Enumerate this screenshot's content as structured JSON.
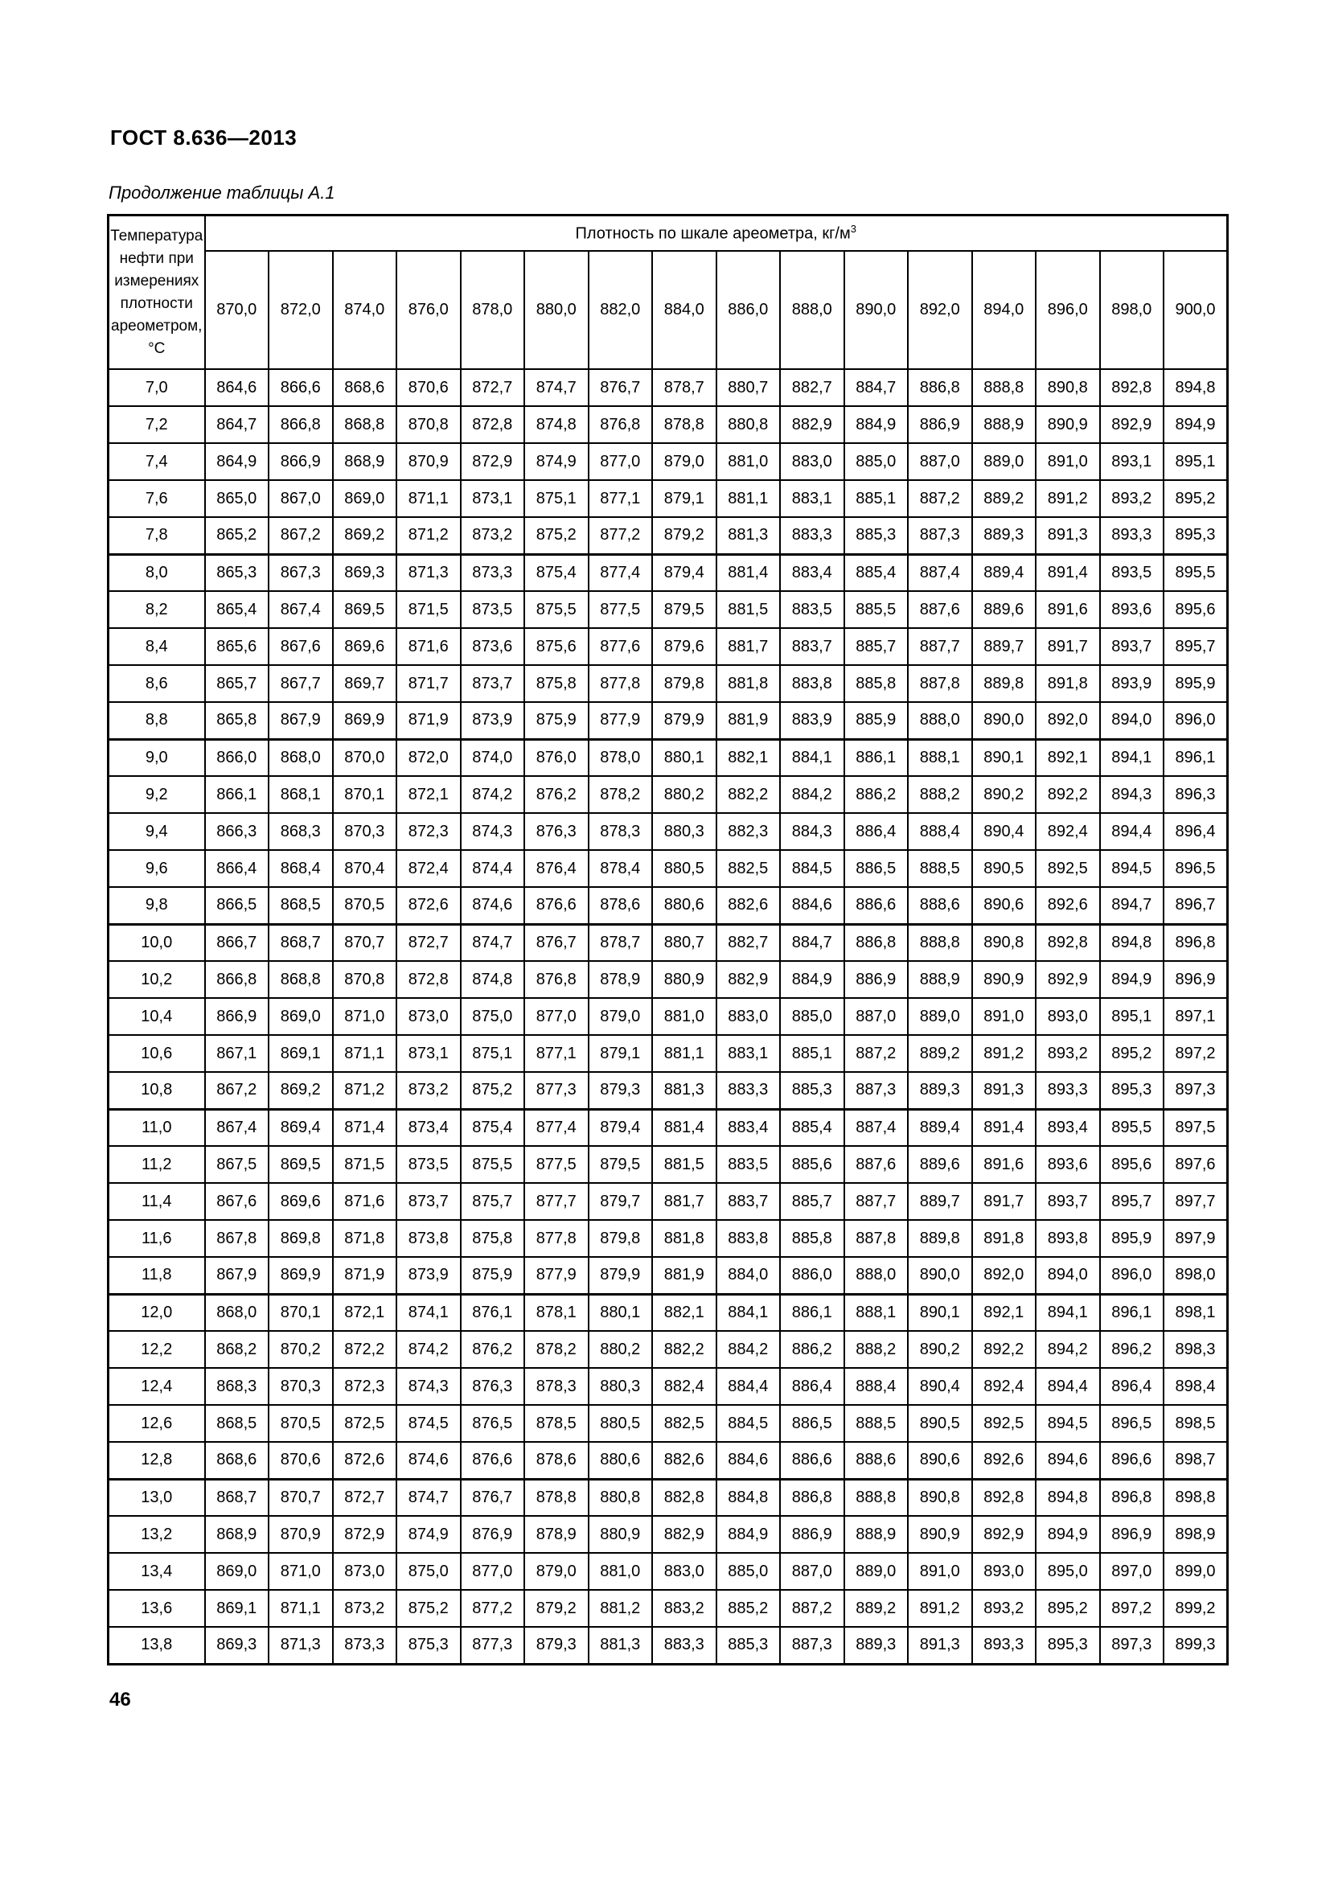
{
  "page": {
    "standard_number": "ГОСТ 8.636—2013",
    "table_caption": "Продолжение таблицы А.1",
    "page_number": "46"
  },
  "table": {
    "corner_header_lines": [
      "Температура",
      "нефти при",
      "измерениях",
      "плотности",
      "ареометром,",
      "°С"
    ],
    "span_header": "Плотность по шкале ареометра, кг/м",
    "span_header_superscript": "3",
    "column_headers": [
      "870,0",
      "872,0",
      "874,0",
      "876,0",
      "878,0",
      "880,0",
      "882,0",
      "884,0",
      "886,0",
      "888,0",
      "890,0",
      "892,0",
      "894,0",
      "896,0",
      "898,0",
      "900,0"
    ],
    "rows": [
      {
        "temp": "7,0",
        "values": [
          "864,6",
          "866,6",
          "868,6",
          "870,6",
          "872,7",
          "874,7",
          "876,7",
          "878,7",
          "880,7",
          "882,7",
          "884,7",
          "886,8",
          "888,8",
          "890,8",
          "892,8",
          "894,8"
        ]
      },
      {
        "temp": "7,2",
        "values": [
          "864,7",
          "866,8",
          "868,8",
          "870,8",
          "872,8",
          "874,8",
          "876,8",
          "878,8",
          "880,8",
          "882,9",
          "884,9",
          "886,9",
          "888,9",
          "890,9",
          "892,9",
          "894,9"
        ]
      },
      {
        "temp": "7,4",
        "values": [
          "864,9",
          "866,9",
          "868,9",
          "870,9",
          "872,9",
          "874,9",
          "877,0",
          "879,0",
          "881,0",
          "883,0",
          "885,0",
          "887,0",
          "889,0",
          "891,0",
          "893,1",
          "895,1"
        ]
      },
      {
        "temp": "7,6",
        "values": [
          "865,0",
          "867,0",
          "869,0",
          "871,1",
          "873,1",
          "875,1",
          "877,1",
          "879,1",
          "881,1",
          "883,1",
          "885,1",
          "887,2",
          "889,2",
          "891,2",
          "893,2",
          "895,2"
        ]
      },
      {
        "temp": "7,8",
        "values": [
          "865,2",
          "867,2",
          "869,2",
          "871,2",
          "873,2",
          "875,2",
          "877,2",
          "879,2",
          "881,3",
          "883,3",
          "885,3",
          "887,3",
          "889,3",
          "891,3",
          "893,3",
          "895,3"
        ]
      },
      {
        "temp": "8,0",
        "values": [
          "865,3",
          "867,3",
          "869,3",
          "871,3",
          "873,3",
          "875,4",
          "877,4",
          "879,4",
          "881,4",
          "883,4",
          "885,4",
          "887,4",
          "889,4",
          "891,4",
          "893,5",
          "895,5"
        ]
      },
      {
        "temp": "8,2",
        "values": [
          "865,4",
          "867,4",
          "869,5",
          "871,5",
          "873,5",
          "875,5",
          "877,5",
          "879,5",
          "881,5",
          "883,5",
          "885,5",
          "887,6",
          "889,6",
          "891,6",
          "893,6",
          "895,6"
        ]
      },
      {
        "temp": "8,4",
        "values": [
          "865,6",
          "867,6",
          "869,6",
          "871,6",
          "873,6",
          "875,6",
          "877,6",
          "879,6",
          "881,7",
          "883,7",
          "885,7",
          "887,7",
          "889,7",
          "891,7",
          "893,7",
          "895,7"
        ]
      },
      {
        "temp": "8,6",
        "values": [
          "865,7",
          "867,7",
          "869,7",
          "871,7",
          "873,7",
          "875,8",
          "877,8",
          "879,8",
          "881,8",
          "883,8",
          "885,8",
          "887,8",
          "889,8",
          "891,8",
          "893,9",
          "895,9"
        ]
      },
      {
        "temp": "8,8",
        "values": [
          "865,8",
          "867,9",
          "869,9",
          "871,9",
          "873,9",
          "875,9",
          "877,9",
          "879,9",
          "881,9",
          "883,9",
          "885,9",
          "888,0",
          "890,0",
          "892,0",
          "894,0",
          "896,0"
        ]
      },
      {
        "temp": "9,0",
        "values": [
          "866,0",
          "868,0",
          "870,0",
          "872,0",
          "874,0",
          "876,0",
          "878,0",
          "880,1",
          "882,1",
          "884,1",
          "886,1",
          "888,1",
          "890,1",
          "892,1",
          "894,1",
          "896,1"
        ]
      },
      {
        "temp": "9,2",
        "values": [
          "866,1",
          "868,1",
          "870,1",
          "872,1",
          "874,2",
          "876,2",
          "878,2",
          "880,2",
          "882,2",
          "884,2",
          "886,2",
          "888,2",
          "890,2",
          "892,2",
          "894,3",
          "896,3"
        ]
      },
      {
        "temp": "9,4",
        "values": [
          "866,3",
          "868,3",
          "870,3",
          "872,3",
          "874,3",
          "876,3",
          "878,3",
          "880,3",
          "882,3",
          "884,3",
          "886,4",
          "888,4",
          "890,4",
          "892,4",
          "894,4",
          "896,4"
        ]
      },
      {
        "temp": "9,6",
        "values": [
          "866,4",
          "868,4",
          "870,4",
          "872,4",
          "874,4",
          "876,4",
          "878,4",
          "880,5",
          "882,5",
          "884,5",
          "886,5",
          "888,5",
          "890,5",
          "892,5",
          "894,5",
          "896,5"
        ]
      },
      {
        "temp": "9,8",
        "values": [
          "866,5",
          "868,5",
          "870,5",
          "872,6",
          "874,6",
          "876,6",
          "878,6",
          "880,6",
          "882,6",
          "884,6",
          "886,6",
          "888,6",
          "890,6",
          "892,6",
          "894,7",
          "896,7"
        ]
      },
      {
        "temp": "10,0",
        "values": [
          "866,7",
          "868,7",
          "870,7",
          "872,7",
          "874,7",
          "876,7",
          "878,7",
          "880,7",
          "882,7",
          "884,7",
          "886,8",
          "888,8",
          "890,8",
          "892,8",
          "894,8",
          "896,8"
        ]
      },
      {
        "temp": "10,2",
        "values": [
          "866,8",
          "868,8",
          "870,8",
          "872,8",
          "874,8",
          "876,8",
          "878,9",
          "880,9",
          "882,9",
          "884,9",
          "886,9",
          "888,9",
          "890,9",
          "892,9",
          "894,9",
          "896,9"
        ]
      },
      {
        "temp": "10,4",
        "values": [
          "866,9",
          "869,0",
          "871,0",
          "873,0",
          "875,0",
          "877,0",
          "879,0",
          "881,0",
          "883,0",
          "885,0",
          "887,0",
          "889,0",
          "891,0",
          "893,0",
          "895,1",
          "897,1"
        ]
      },
      {
        "temp": "10,6",
        "values": [
          "867,1",
          "869,1",
          "871,1",
          "873,1",
          "875,1",
          "877,1",
          "879,1",
          "881,1",
          "883,1",
          "885,1",
          "887,2",
          "889,2",
          "891,2",
          "893,2",
          "895,2",
          "897,2"
        ]
      },
      {
        "temp": "10,8",
        "values": [
          "867,2",
          "869,2",
          "871,2",
          "873,2",
          "875,2",
          "877,3",
          "879,3",
          "881,3",
          "883,3",
          "885,3",
          "887,3",
          "889,3",
          "891,3",
          "893,3",
          "895,3",
          "897,3"
        ]
      },
      {
        "temp": "11,0",
        "values": [
          "867,4",
          "869,4",
          "871,4",
          "873,4",
          "875,4",
          "877,4",
          "879,4",
          "881,4",
          "883,4",
          "885,4",
          "887,4",
          "889,4",
          "891,4",
          "893,4",
          "895,5",
          "897,5"
        ]
      },
      {
        "temp": "11,2",
        "values": [
          "867,5",
          "869,5",
          "871,5",
          "873,5",
          "875,5",
          "877,5",
          "879,5",
          "881,5",
          "883,5",
          "885,6",
          "887,6",
          "889,6",
          "891,6",
          "893,6",
          "895,6",
          "897,6"
        ]
      },
      {
        "temp": "11,4",
        "values": [
          "867,6",
          "869,6",
          "871,6",
          "873,7",
          "875,7",
          "877,7",
          "879,7",
          "881,7",
          "883,7",
          "885,7",
          "887,7",
          "889,7",
          "891,7",
          "893,7",
          "895,7",
          "897,7"
        ]
      },
      {
        "temp": "11,6",
        "values": [
          "867,8",
          "869,8",
          "871,8",
          "873,8",
          "875,8",
          "877,8",
          "879,8",
          "881,8",
          "883,8",
          "885,8",
          "887,8",
          "889,8",
          "891,8",
          "893,8",
          "895,9",
          "897,9"
        ]
      },
      {
        "temp": "11,8",
        "values": [
          "867,9",
          "869,9",
          "871,9",
          "873,9",
          "875,9",
          "877,9",
          "879,9",
          "881,9",
          "884,0",
          "886,0",
          "888,0",
          "890,0",
          "892,0",
          "894,0",
          "896,0",
          "898,0"
        ]
      },
      {
        "temp": "12,0",
        "values": [
          "868,0",
          "870,1",
          "872,1",
          "874,1",
          "876,1",
          "878,1",
          "880,1",
          "882,1",
          "884,1",
          "886,1",
          "888,1",
          "890,1",
          "892,1",
          "894,1",
          "896,1",
          "898,1"
        ]
      },
      {
        "temp": "12,2",
        "values": [
          "868,2",
          "870,2",
          "872,2",
          "874,2",
          "876,2",
          "878,2",
          "880,2",
          "882,2",
          "884,2",
          "886,2",
          "888,2",
          "890,2",
          "892,2",
          "894,2",
          "896,2",
          "898,3"
        ]
      },
      {
        "temp": "12,4",
        "values": [
          "868,3",
          "870,3",
          "872,3",
          "874,3",
          "876,3",
          "878,3",
          "880,3",
          "882,4",
          "884,4",
          "886,4",
          "888,4",
          "890,4",
          "892,4",
          "894,4",
          "896,4",
          "898,4"
        ]
      },
      {
        "temp": "12,6",
        "values": [
          "868,5",
          "870,5",
          "872,5",
          "874,5",
          "876,5",
          "878,5",
          "880,5",
          "882,5",
          "884,5",
          "886,5",
          "888,5",
          "890,5",
          "892,5",
          "894,5",
          "896,5",
          "898,5"
        ]
      },
      {
        "temp": "12,8",
        "values": [
          "868,6",
          "870,6",
          "872,6",
          "874,6",
          "876,6",
          "878,6",
          "880,6",
          "882,6",
          "884,6",
          "886,6",
          "888,6",
          "890,6",
          "892,6",
          "894,6",
          "896,6",
          "898,7"
        ]
      },
      {
        "temp": "13,0",
        "values": [
          "868,7",
          "870,7",
          "872,7",
          "874,7",
          "876,7",
          "878,8",
          "880,8",
          "882,8",
          "884,8",
          "886,8",
          "888,8",
          "890,8",
          "892,8",
          "894,8",
          "896,8",
          "898,8"
        ]
      },
      {
        "temp": "13,2",
        "values": [
          "868,9",
          "870,9",
          "872,9",
          "874,9",
          "876,9",
          "878,9",
          "880,9",
          "882,9",
          "884,9",
          "886,9",
          "888,9",
          "890,9",
          "892,9",
          "894,9",
          "896,9",
          "898,9"
        ]
      },
      {
        "temp": "13,4",
        "values": [
          "869,0",
          "871,0",
          "873,0",
          "875,0",
          "877,0",
          "879,0",
          "881,0",
          "883,0",
          "885,0",
          "887,0",
          "889,0",
          "891,0",
          "893,0",
          "895,0",
          "897,0",
          "899,0"
        ]
      },
      {
        "temp": "13,6",
        "values": [
          "869,1",
          "871,1",
          "873,2",
          "875,2",
          "877,2",
          "879,2",
          "881,2",
          "883,2",
          "885,2",
          "887,2",
          "889,2",
          "891,2",
          "893,2",
          "895,2",
          "897,2",
          "899,2"
        ]
      },
      {
        "temp": "13,8",
        "values": [
          "869,3",
          "871,3",
          "873,3",
          "875,3",
          "877,3",
          "879,3",
          "881,3",
          "883,3",
          "885,3",
          "887,3",
          "889,3",
          "891,3",
          "893,3",
          "895,3",
          "897,3",
          "899,3"
        ]
      }
    ]
  }
}
